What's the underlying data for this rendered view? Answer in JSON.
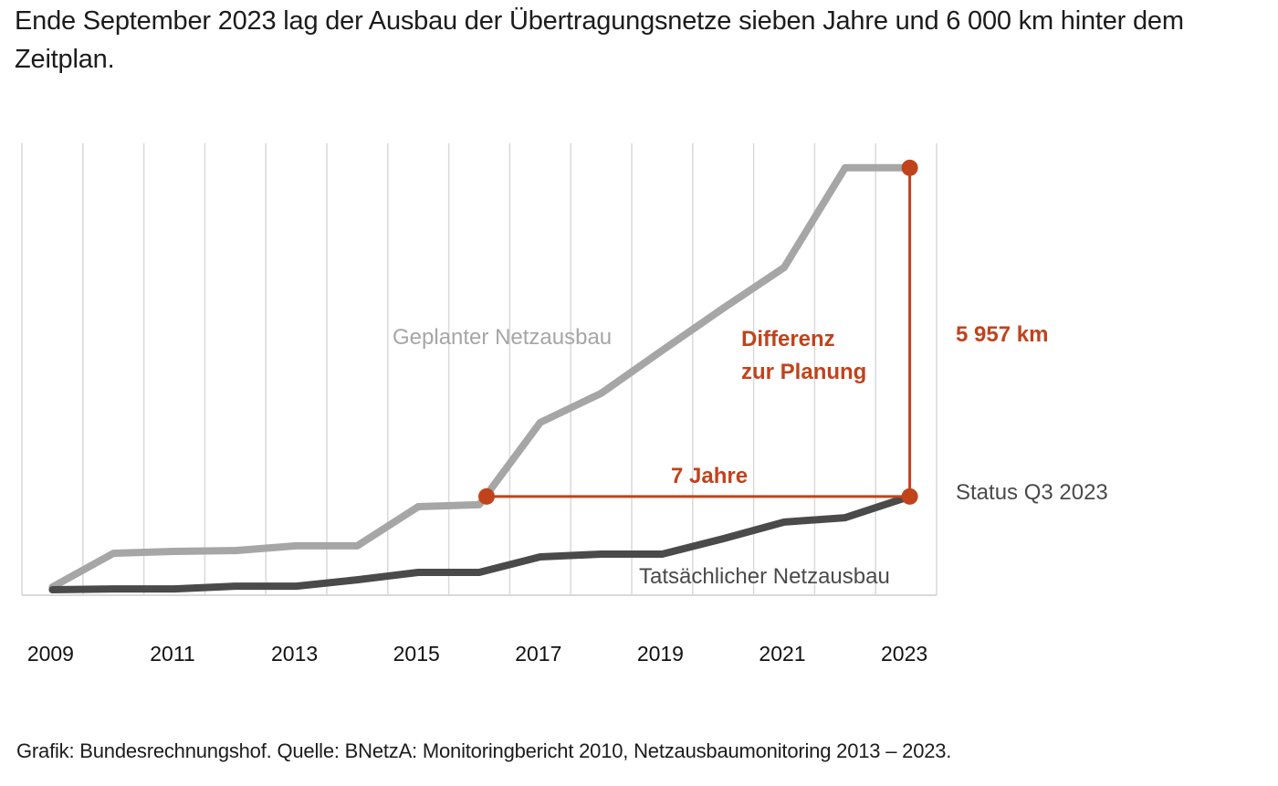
{
  "title": "Ende September 2023 lag der Ausbau der Übertragungsnetze sieben Jahre und 6 000 km hinter dem Zeitplan.",
  "footer": "Grafik: Bundesrechnungshof. Quelle: BNetzA: Monitoringbericht 2010, Netzausbaumonitoring 2013 – 2023.",
  "colors": {
    "planned": "#a6a6a6",
    "actual": "#4a4a4a",
    "accent": "#c0431c",
    "grid": "#d9d9d9"
  },
  "chart_data": {
    "type": "line",
    "title": "Ende September 2023 lag der Ausbau der Übertragungsnetze sieben Jahre und 6 000 km hinter dem Zeitplan.",
    "xlabel": "",
    "ylabel": "",
    "x": [
      "2009",
      "2010",
      "2011",
      "2012",
      "2013",
      "2014",
      "2015",
      "2016",
      "2017",
      "2018",
      "2019",
      "2020",
      "2021",
      "2022",
      "Q3 2023"
    ],
    "x_tick_labels": [
      "2009",
      "2011",
      "2013",
      "2015",
      "2017",
      "2019",
      "2021",
      "2023"
    ],
    "x_tick_indices": [
      0,
      2,
      4,
      6,
      8,
      10,
      12,
      14
    ],
    "ylim": [
      0,
      8000
    ],
    "y_axis_visible": false,
    "grid": "vertical",
    "series": [
      {
        "name": "Geplanter Netzausbau",
        "label": "Geplanter Netzausbau",
        "color": "#a6a6a6",
        "values": [
          50,
          660,
          695,
          710,
          795,
          795,
          1505,
          1540,
          3030,
          3560,
          4335,
          5100,
          5840,
          7645,
          7645
        ]
      },
      {
        "name": "Tatsächlicher Netzausbau",
        "label": "Tatsächlicher Netzausbau",
        "color": "#4a4a4a",
        "values": [
          0,
          15,
          15,
          65,
          65,
          180,
          315,
          315,
          595,
          645,
          645,
          925,
          1225,
          1305,
          1690
        ]
      }
    ],
    "annotations": {
      "gap_horizontal": {
        "label": "7 Jahre",
        "from_x_index": 7.12,
        "to_x_index": 14,
        "value": 1690
      },
      "gap_vertical": {
        "label": "5 957 km",
        "x_index": 14,
        "from_value": 1690,
        "to_value": 7645
      },
      "difference_label": [
        "Differenz",
        "zur Planung"
      ],
      "status_label": "Status Q3 2023"
    }
  }
}
